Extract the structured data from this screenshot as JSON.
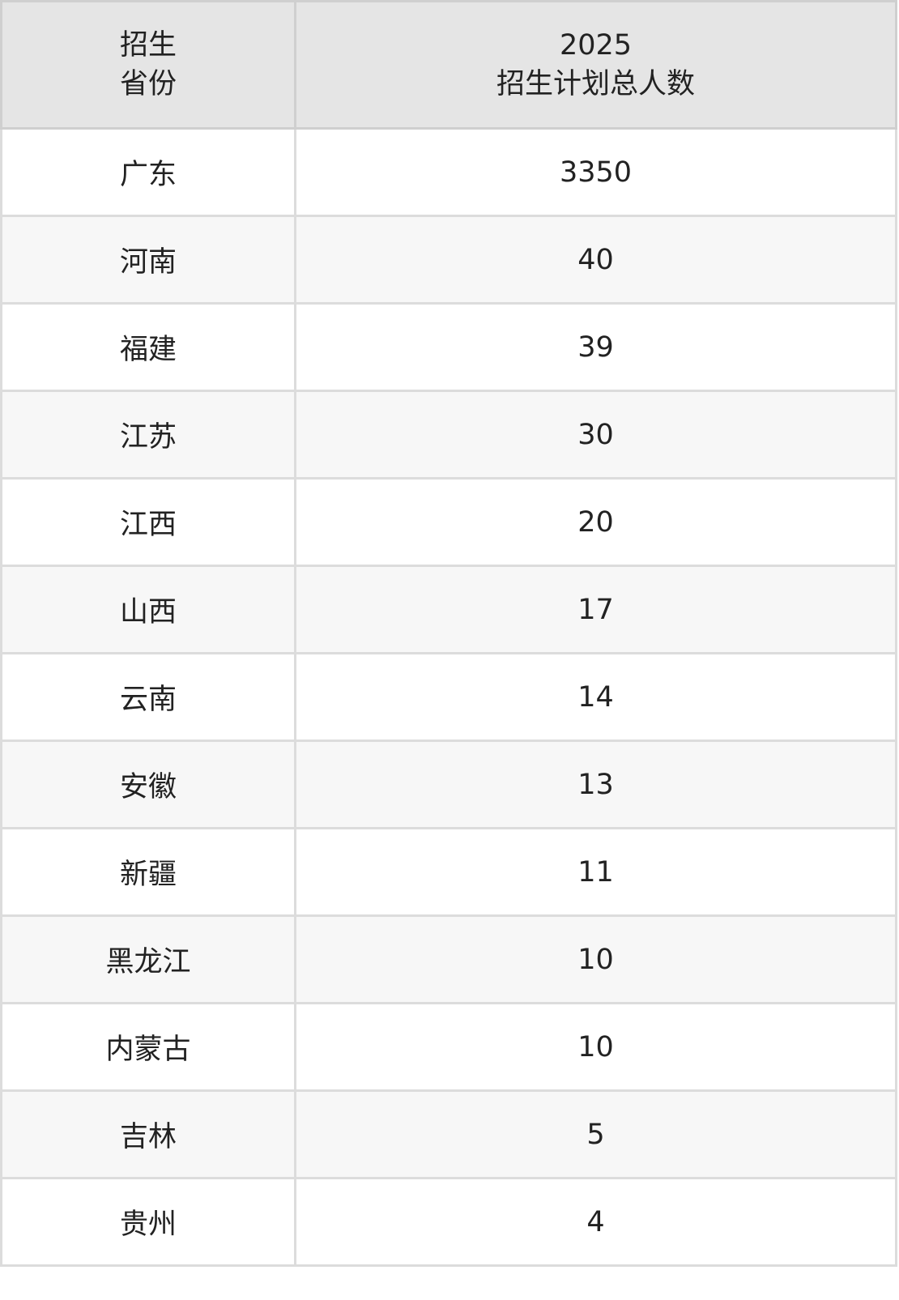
{
  "table": {
    "headers": [
      {
        "line1": "招生",
        "line2": "省份"
      },
      {
        "line1": "2025",
        "line2": "招生计划总人数"
      }
    ],
    "rows": [
      {
        "province": "广东",
        "count": "3350"
      },
      {
        "province": "河南",
        "count": "40"
      },
      {
        "province": "福建",
        "count": "39"
      },
      {
        "province": "江苏",
        "count": "30"
      },
      {
        "province": "江西",
        "count": "20"
      },
      {
        "province": "山西",
        "count": "17"
      },
      {
        "province": "云南",
        "count": "14"
      },
      {
        "province": "安徽",
        "count": "13"
      },
      {
        "province": "新疆",
        "count": "11"
      },
      {
        "province": "黑龙江",
        "count": "10"
      },
      {
        "province": "内蒙古",
        "count": "10"
      },
      {
        "province": "吉林",
        "count": "5"
      },
      {
        "province": "贵州",
        "count": "4"
      }
    ]
  }
}
